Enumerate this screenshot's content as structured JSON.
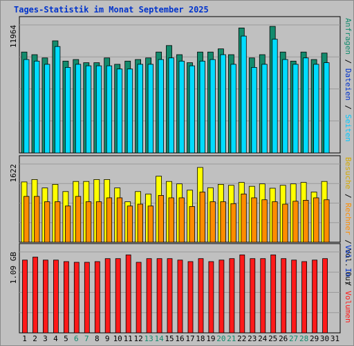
{
  "title": "Tages-Statistik im Monat September 2025",
  "colors": {
    "background": "#c0c0c0",
    "anfragen": "#138b6d",
    "dateien": "#00dcff",
    "seiten": "#00c8ff",
    "besuche": "#ffff00",
    "rechner": "#ff8c00",
    "kbytes": "#ff1a1a",
    "weekday_label": "#000000",
    "weekend_label": "#138b6d",
    "grid": "#9a9a9a"
  },
  "chart_data": [
    {
      "type": "bar",
      "panel": "top",
      "ylabel_value": "11964",
      "ylim": [
        0,
        11964
      ],
      "categories": [
        "1",
        "2",
        "3",
        "4",
        "5",
        "6",
        "7",
        "8",
        "9",
        "10",
        "11",
        "12",
        "13",
        "14",
        "15",
        "16",
        "17",
        "18",
        "19",
        "20",
        "21",
        "22",
        "23",
        "24",
        "25",
        "26",
        "27",
        "28",
        "29",
        "30",
        "31"
      ],
      "series": [
        {
          "name": "Anfragen",
          "color": "#138b6d",
          "values": [
            9430,
            9183,
            8879,
            10479,
            8583,
            8731,
            8435,
            8435,
            8879,
            8287,
            8583,
            8731,
            8879,
            9430,
            10036,
            9183,
            8435,
            9430,
            9430,
            9726,
            9183,
            11678,
            8879,
            9183,
            11825,
            9430,
            8583,
            9430,
            8731,
            9331,
            0
          ]
        },
        {
          "name": "Dateien",
          "color": "#00dcff",
          "values": [
            8731,
            8583,
            8287,
            9944,
            7991,
            8287,
            8139,
            8139,
            8139,
            7843,
            7843,
            8287,
            8287,
            8731,
            8879,
            8583,
            8139,
            8583,
            8731,
            9183,
            8287,
            10923,
            7991,
            8287,
            10627,
            8731,
            8287,
            8879,
            8287,
            8435,
            0
          ]
        }
      ]
    },
    {
      "type": "bar",
      "panel": "middle",
      "ylabel_value": "1622",
      "ylim": [
        0,
        1622
      ],
      "categories": [
        "1",
        "2",
        "3",
        "4",
        "5",
        "6",
        "7",
        "8",
        "9",
        "10",
        "11",
        "12",
        "13",
        "14",
        "15",
        "16",
        "17",
        "18",
        "19",
        "20",
        "21",
        "22",
        "23",
        "24",
        "25",
        "26",
        "27",
        "28",
        "29",
        "30",
        "31"
      ],
      "series": [
        {
          "name": "Besuche",
          "color": "#ffff00",
          "values": [
            1250,
            1300,
            1125,
            1200,
            1050,
            1260,
            1260,
            1300,
            1300,
            1125,
            840,
            1050,
            1000,
            1370,
            1260,
            1210,
            1080,
            1550,
            1130,
            1200,
            1180,
            1240,
            1160,
            1210,
            1120,
            1180,
            1210,
            1240,
            1040,
            1260,
            0
          ]
        },
        {
          "name": "Rechner",
          "color": "#ff8c00",
          "values": [
            950,
            950,
            840,
            840,
            750,
            950,
            840,
            840,
            920,
            920,
            750,
            790,
            750,
            970,
            920,
            920,
            740,
            1040,
            840,
            840,
            800,
            1000,
            920,
            880,
            840,
            790,
            850,
            870,
            920,
            880,
            0
          ]
        }
      ]
    },
    {
      "type": "bar",
      "panel": "bottom",
      "ylabel_value": "1.09 GB",
      "ylim": [
        0,
        1.09
      ],
      "categories": [
        "1",
        "2",
        "3",
        "4",
        "5",
        "6",
        "7",
        "8",
        "9",
        "10",
        "11",
        "12",
        "13",
        "14",
        "15",
        "16",
        "17",
        "18",
        "19",
        "20",
        "21",
        "22",
        "23",
        "24",
        "25",
        "26",
        "27",
        "28",
        "29",
        "30",
        "31"
      ],
      "series": [
        {
          "name": "Volumen",
          "color": "#ff1a1a",
          "values": [
            0.98,
            1.02,
            0.98,
            0.98,
            0.96,
            0.95,
            0.95,
            0.96,
            1.0,
            1.0,
            1.05,
            0.95,
            1.0,
            1.0,
            1.0,
            0.98,
            0.96,
            1.0,
            0.96,
            0.98,
            1.0,
            1.05,
            1.0,
            1.0,
            1.05,
            1.0,
            0.98,
            0.96,
            0.98,
            1.0,
            0
          ]
        }
      ]
    }
  ],
  "weekend_days": [
    "6",
    "7",
    "13",
    "14",
    "20",
    "21",
    "27",
    "28"
  ],
  "right_legends": [
    {
      "panel": "top",
      "items": [
        {
          "text": "Anfragen",
          "color": "#138b6d"
        },
        {
          "text": "Dateien",
          "color": "#0033cc"
        },
        {
          "text": "Seiten",
          "color": "#00c8ff"
        }
      ]
    },
    {
      "panel": "middle",
      "items": [
        {
          "text": "Besuche",
          "color": "#d4a800"
        },
        {
          "text": "Rechner",
          "color": "#ff8c00"
        },
        {
          "text": "Vol. Out",
          "color": "#1a1a1a"
        }
      ]
    },
    {
      "panel": "bottom",
      "items": [
        {
          "text": "Vol. In",
          "color": "#0033cc"
        },
        {
          "text": "Volumen",
          "color": "#ff1a1a"
        }
      ]
    }
  ],
  "separator": " / "
}
